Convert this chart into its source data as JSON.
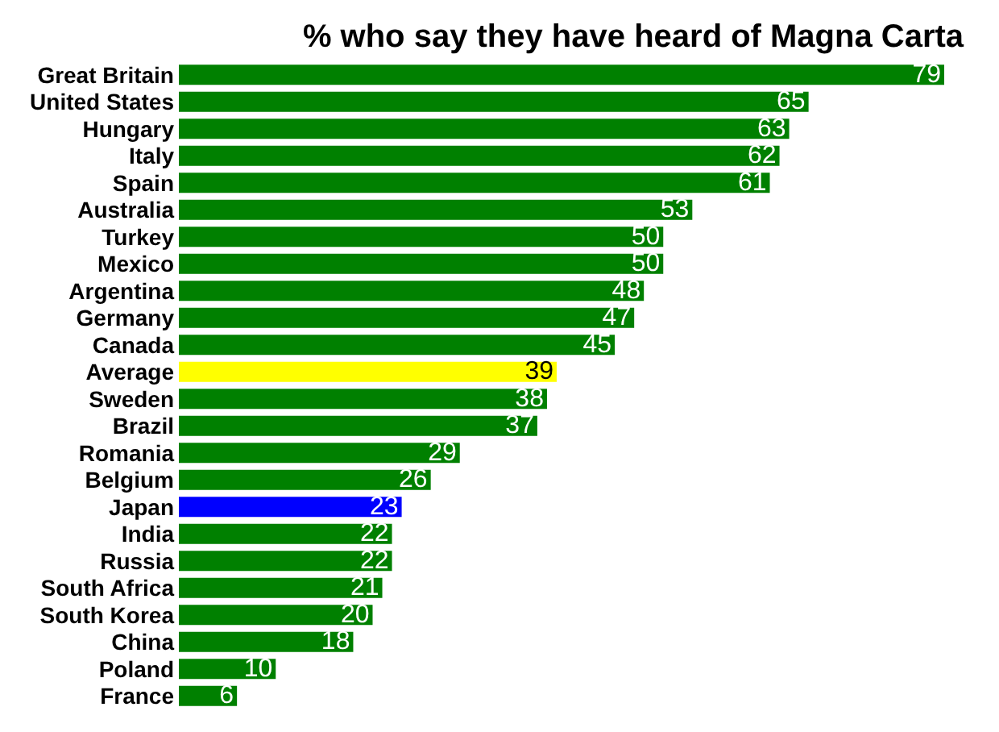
{
  "chart_data": {
    "type": "bar",
    "orientation": "horizontal",
    "title": "% who say they have heard of Magna Carta",
    "categories": [
      "Great Britain",
      "United States",
      "Hungary",
      "Italy",
      "Spain",
      "Australia",
      "Turkey",
      "Mexico",
      "Argentina",
      "Germany",
      "Canada",
      "Average",
      "Sweden",
      "Brazil",
      "Romania",
      "Belgium",
      "Japan",
      "India",
      "Russia",
      "South Africa",
      "South Korea",
      "China",
      "Poland",
      "France"
    ],
    "values": [
      79,
      65,
      63,
      62,
      61,
      53,
      50,
      50,
      48,
      47,
      45,
      39,
      38,
      37,
      29,
      26,
      23,
      22,
      22,
      21,
      20,
      18,
      10,
      6
    ],
    "colors": [
      "#008000",
      "#008000",
      "#008000",
      "#008000",
      "#008000",
      "#008000",
      "#008000",
      "#008000",
      "#008000",
      "#008000",
      "#008000",
      "#ffff00",
      "#008000",
      "#008000",
      "#008000",
      "#008000",
      "#0000ff",
      "#008000",
      "#008000",
      "#008000",
      "#008000",
      "#008000",
      "#008000",
      "#008000"
    ],
    "data_labels": true,
    "tick_labels": "y"
  }
}
